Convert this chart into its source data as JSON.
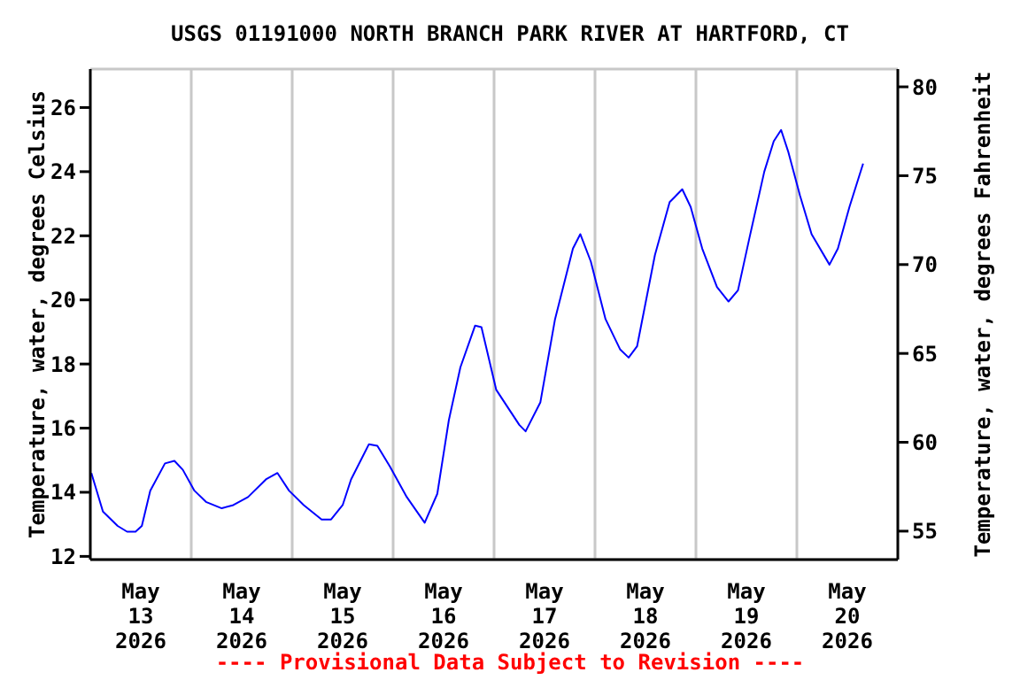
{
  "chart_data": {
    "type": "line",
    "title": "USGS 01191000 NORTH BRANCH PARK RIVER AT HARTFORD, CT",
    "ylabel": "Temperature, water, degrees Celsius",
    "y2label": "Temperature, water, degrees Fahrenheit",
    "annotations": [
      "---- Provisional Data Subject to Revision ----"
    ],
    "x": [
      "2026-05-13T00:15",
      "2026-05-13T03:00",
      "2026-05-13T06:30",
      "2026-05-13T08:45",
      "2026-05-13T10:45",
      "2026-05-13T12:15",
      "2026-05-13T14:15",
      "2026-05-13T17:45",
      "2026-05-13T20:00",
      "2026-05-13T22:00",
      "2026-05-14T00:45",
      "2026-05-14T03:30",
      "2026-05-14T07:15",
      "2026-05-14T10:00",
      "2026-05-14T13:30",
      "2026-05-14T17:45",
      "2026-05-14T20:30",
      "2026-05-14T23:15",
      "2026-05-15T02:45",
      "2026-05-15T07:00",
      "2026-05-15T09:15",
      "2026-05-15T12:00",
      "2026-05-15T14:00",
      "2026-05-15T18:15",
      "2026-05-15T20:15",
      "2026-05-15T23:15",
      "2026-05-16T03:15",
      "2026-05-16T07:30",
      "2026-05-16T10:30",
      "2026-05-16T13:15",
      "2026-05-16T16:00",
      "2026-05-16T19:30",
      "2026-05-16T21:00",
      "2026-05-17T00:30",
      "2026-05-17T06:00",
      "2026-05-17T07:30",
      "2026-05-17T11:00",
      "2026-05-17T14:30",
      "2026-05-17T18:45",
      "2026-05-17T20:30",
      "2026-05-17T23:00",
      "2026-05-18T02:30",
      "2026-05-18T06:00",
      "2026-05-18T08:00",
      "2026-05-18T10:00",
      "2026-05-18T14:15",
      "2026-05-18T17:45",
      "2026-05-18T20:45",
      "2026-05-18T22:45",
      "2026-05-19T01:30",
      "2026-05-19T05:00",
      "2026-05-19T07:45",
      "2026-05-19T10:00",
      "2026-05-19T12:45",
      "2026-05-19T16:15",
      "2026-05-19T18:30",
      "2026-05-19T20:15",
      "2026-05-19T22:00",
      "2026-05-20T00:45",
      "2026-05-20T03:30",
      "2026-05-20T07:45",
      "2026-05-20T09:45",
      "2026-05-20T12:30",
      "2026-05-20T15:45"
    ],
    "series": [
      {
        "color": "#0000ff",
        "values": [
          14.6,
          13.4,
          12.95,
          12.77,
          12.77,
          12.95,
          14.05,
          14.9,
          14.98,
          14.7,
          14.05,
          13.7,
          13.5,
          13.6,
          13.85,
          14.4,
          14.6,
          14.05,
          13.6,
          13.15,
          13.15,
          13.6,
          14.4,
          15.5,
          15.45,
          14.8,
          13.85,
          13.05,
          13.95,
          16.25,
          17.9,
          19.2,
          19.15,
          17.2,
          16.1,
          15.9,
          16.8,
          19.4,
          21.6,
          22.05,
          21.2,
          19.4,
          18.45,
          18.2,
          18.55,
          21.4,
          23.05,
          23.45,
          22.9,
          21.6,
          20.4,
          19.95,
          20.3,
          21.95,
          24.0,
          24.95,
          25.3,
          24.6,
          23.25,
          22.05,
          21.1,
          21.6,
          22.9,
          24.25
        ]
      }
    ],
    "xlim": [
      "2026-05-13T00:00",
      "2026-05-21T00:00"
    ],
    "xticks": [
      {
        "value": "2026-05-13T12:00",
        "label": "May\n13\n2026"
      },
      {
        "value": "2026-05-14T00:00",
        "label": null
      },
      {
        "value": "2026-05-14T12:00",
        "label": "May\n14\n2026"
      },
      {
        "value": "2026-05-15T00:00",
        "label": null
      },
      {
        "value": "2026-05-15T12:00",
        "label": "May\n15\n2026"
      },
      {
        "value": "2026-05-16T00:00",
        "label": null
      },
      {
        "value": "2026-05-16T12:00",
        "label": "May\n16\n2026"
      },
      {
        "value": "2026-05-17T00:00",
        "label": null
      },
      {
        "value": "2026-05-17T12:00",
        "label": "May\n17\n2026"
      },
      {
        "value": "2026-05-18T00:00",
        "label": null
      },
      {
        "value": "2026-05-18T12:00",
        "label": "May\n18\n2026"
      },
      {
        "value": "2026-05-19T00:00",
        "label": null
      },
      {
        "value": "2026-05-19T12:00",
        "label": "May\n19\n2026"
      },
      {
        "value": "2026-05-20T00:00",
        "label": null
      },
      {
        "value": "2026-05-20T12:00",
        "label": "May\n20\n2026"
      }
    ],
    "ylim": [
      11.9,
      27.2
    ],
    "yticks": [
      12,
      14,
      16,
      18,
      20,
      22,
      24,
      26
    ],
    "y2lim": [
      53.4,
      81.0
    ],
    "y2ticks": [
      55,
      60,
      65,
      70,
      75,
      80
    ],
    "grid": true,
    "legend": false,
    "marker": "none",
    "line_style": "solid"
  }
}
